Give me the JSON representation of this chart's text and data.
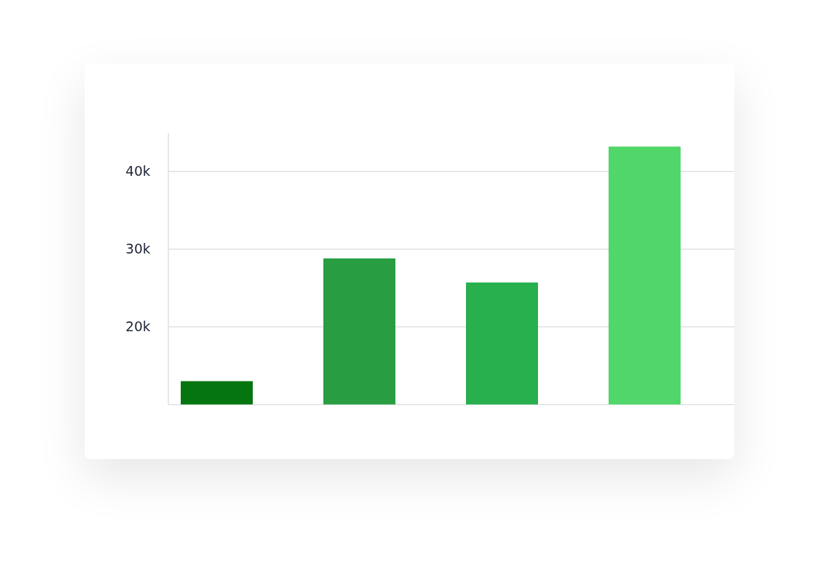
{
  "chart_data": {
    "type": "bar",
    "categories": [
      null,
      null,
      null,
      null
    ],
    "values": [
      13000,
      28800,
      25700,
      43200
    ],
    "colors": [
      "#04750f",
      "#289d42",
      "#28af4e",
      "#51d669"
    ],
    "ylim": [
      10000,
      45000
    ],
    "yticks": [
      {
        "value": 10000,
        "label": null
      },
      {
        "value": 20000,
        "label": "20k"
      },
      {
        "value": 30000,
        "label": "30k"
      },
      {
        "value": 40000,
        "label": "40k"
      }
    ],
    "grid": "y"
  }
}
